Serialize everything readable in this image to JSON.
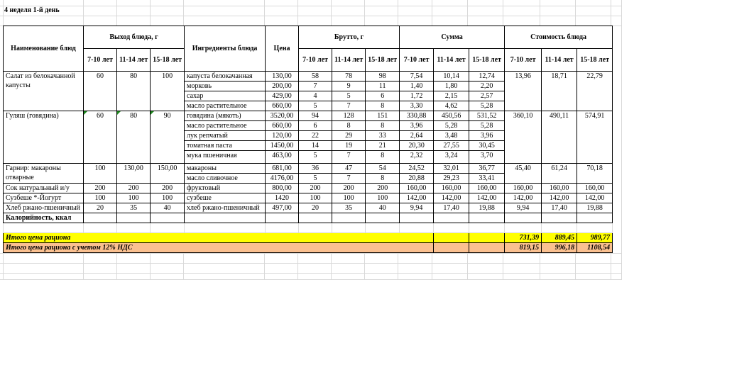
{
  "sheet_title": "4 неделя 1-й день",
  "headers": {
    "dish_name": "Наименование блюд",
    "output": "Выход блюда, г",
    "ingredients": "Ингредиенты блюда",
    "price": "Цена",
    "gross": "Брутто, г",
    "sum": "Сумма",
    "dish_cost": "Стоимость блюда",
    "ages": [
      "7-10 лет",
      "11-14 лет",
      "15-18 лет"
    ]
  },
  "dishes": [
    {
      "name": "Салат из белокачанной капусты",
      "output": [
        "60",
        "80",
        "100"
      ],
      "cost": [
        "13,96",
        "18,71",
        "22,79"
      ],
      "items": [
        {
          "ingredient": "капуста белокачанная",
          "price": "130,00",
          "gross": [
            "58",
            "78",
            "98"
          ],
          "sum": [
            "7,54",
            "10,14",
            "12,74"
          ]
        },
        {
          "ingredient": "морковь",
          "price": "200,00",
          "gross": [
            "7",
            "9",
            "11"
          ],
          "sum": [
            "1,40",
            "1,80",
            "2,20"
          ]
        },
        {
          "ingredient": "сахар",
          "price": "429,00",
          "gross": [
            "4",
            "5",
            "6"
          ],
          "sum": [
            "1,72",
            "2,15",
            "2,57"
          ]
        },
        {
          "ingredient": "масло растительное",
          "price": "660,00",
          "gross": [
            "5",
            "7",
            "8"
          ],
          "sum": [
            "3,30",
            "4,62",
            "5,28"
          ]
        }
      ]
    },
    {
      "name": "Гуляш (говядина)",
      "output": [
        "60",
        "80",
        "90"
      ],
      "cost": [
        "360,10",
        "490,11",
        "574,91"
      ],
      "flagged": true,
      "items": [
        {
          "ingredient": "говядина (мякоть)",
          "price": "3520,00",
          "gross": [
            "94",
            "128",
            "151"
          ],
          "sum": [
            "330,88",
            "450,56",
            "531,52"
          ]
        },
        {
          "ingredient": "масло растительное",
          "price": "660,00",
          "gross": [
            "6",
            "8",
            "8"
          ],
          "sum": [
            "3,96",
            "5,28",
            "5,28"
          ]
        },
        {
          "ingredient": "лук репчатый",
          "price": "120,00",
          "gross": [
            "22",
            "29",
            "33"
          ],
          "sum": [
            "2,64",
            "3,48",
            "3,96"
          ]
        },
        {
          "ingredient": "томатная паста",
          "price": "1450,00",
          "gross": [
            "14",
            "19",
            "21"
          ],
          "sum": [
            "20,30",
            "27,55",
            "30,45"
          ]
        },
        {
          "ingredient": "мука пшеничная",
          "price": "463,00",
          "gross": [
            "5",
            "7",
            "8"
          ],
          "sum": [
            "2,32",
            "3,24",
            "3,70"
          ]
        }
      ]
    },
    {
      "name": "Гарнир: макароны отварные",
      "output": [
        "100",
        "130,00",
        "150,00"
      ],
      "cost": [
        "45,40",
        "61,24",
        "70,18"
      ],
      "items": [
        {
          "ingredient": "макароны",
          "price": "681,00",
          "gross": [
            "36",
            "47",
            "54"
          ],
          "sum": [
            "24,52",
            "32,01",
            "36,77"
          ]
        },
        {
          "ingredient": "масло сливочное",
          "price": "4176,00",
          "gross": [
            "5",
            "7",
            "8"
          ],
          "sum": [
            "20,88",
            "29,23",
            "33,41"
          ]
        }
      ]
    },
    {
      "name": "Сок натуральный и/у",
      "output": [
        "200",
        "200",
        "200"
      ],
      "cost": [
        "160,00",
        "160,00",
        "160,00"
      ],
      "items": [
        {
          "ingredient": "фруктовый",
          "price": "800,00",
          "gross": [
            "200",
            "200",
            "200"
          ],
          "sum": [
            "160,00",
            "160,00",
            "160,00"
          ]
        }
      ]
    },
    {
      "name": "Сузбеше *-Йогурт",
      "output": [
        "100",
        "100",
        "100"
      ],
      "cost": [
        "142,00",
        "142,00",
        "142,00"
      ],
      "items": [
        {
          "ingredient": "сузбеше",
          "price": "1420",
          "gross": [
            "100",
            "100",
            "100"
          ],
          "sum": [
            "142,00",
            "142,00",
            "142,00"
          ]
        }
      ]
    },
    {
      "name": "Хлеб ржано-пшеничный",
      "output": [
        "20",
        "35",
        "40"
      ],
      "cost": [
        "9,94",
        "17,40",
        "19,88"
      ],
      "items": [
        {
          "ingredient": "хлеб ржано-пшеничный",
          "price": "497,00",
          "gross": [
            "20",
            "35",
            "40"
          ],
          "sum": [
            "9,94",
            "17,40",
            "19,88"
          ]
        }
      ]
    }
  ],
  "calories_label": "Калорийность, ккал",
  "totals": [
    {
      "label": "Итого цена рациона",
      "values": [
        "731,39",
        "889,45",
        "989,77"
      ],
      "color": "#ffff00"
    },
    {
      "label": "Итого цена рациона с учетом 12% НДС",
      "values": [
        "819,15",
        "996,18",
        "1108,54"
      ],
      "color": "#fac090"
    }
  ]
}
